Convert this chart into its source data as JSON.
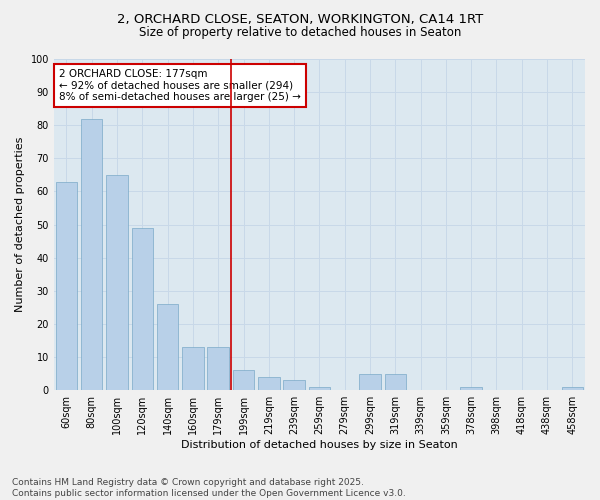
{
  "title1": "2, ORCHARD CLOSE, SEATON, WORKINGTON, CA14 1RT",
  "title2": "Size of property relative to detached houses in Seaton",
  "xlabel": "Distribution of detached houses by size in Seaton",
  "ylabel": "Number of detached properties",
  "categories": [
    "60sqm",
    "80sqm",
    "100sqm",
    "120sqm",
    "140sqm",
    "160sqm",
    "179sqm",
    "199sqm",
    "219sqm",
    "239sqm",
    "259sqm",
    "279sqm",
    "299sqm",
    "319sqm",
    "339sqm",
    "359sqm",
    "378sqm",
    "398sqm",
    "418sqm",
    "438sqm",
    "458sqm"
  ],
  "values": [
    63,
    82,
    65,
    49,
    26,
    13,
    13,
    6,
    4,
    3,
    1,
    0,
    5,
    5,
    0,
    0,
    1,
    0,
    0,
    0,
    1
  ],
  "bar_color": "#b8d0e8",
  "bar_edge_color": "#7aaac8",
  "vline_color": "#cc0000",
  "annotation_text": "2 ORCHARD CLOSE: 177sqm\n← 92% of detached houses are smaller (294)\n8% of semi-detached houses are larger (25) →",
  "annotation_box_color": "#ffffff",
  "annotation_box_edge": "#cc0000",
  "ylim": [
    0,
    100
  ],
  "yticks": [
    0,
    10,
    20,
    30,
    40,
    50,
    60,
    70,
    80,
    90,
    100
  ],
  "grid_color": "#c8d8e8",
  "bg_color": "#dce8f0",
  "fig_bg_color": "#f0f0f0",
  "footer": "Contains HM Land Registry data © Crown copyright and database right 2025.\nContains public sector information licensed under the Open Government Licence v3.0.",
  "title_fontsize": 9.5,
  "subtitle_fontsize": 8.5,
  "axis_label_fontsize": 8,
  "tick_fontsize": 7,
  "annotation_fontsize": 7.5,
  "footer_fontsize": 6.5
}
